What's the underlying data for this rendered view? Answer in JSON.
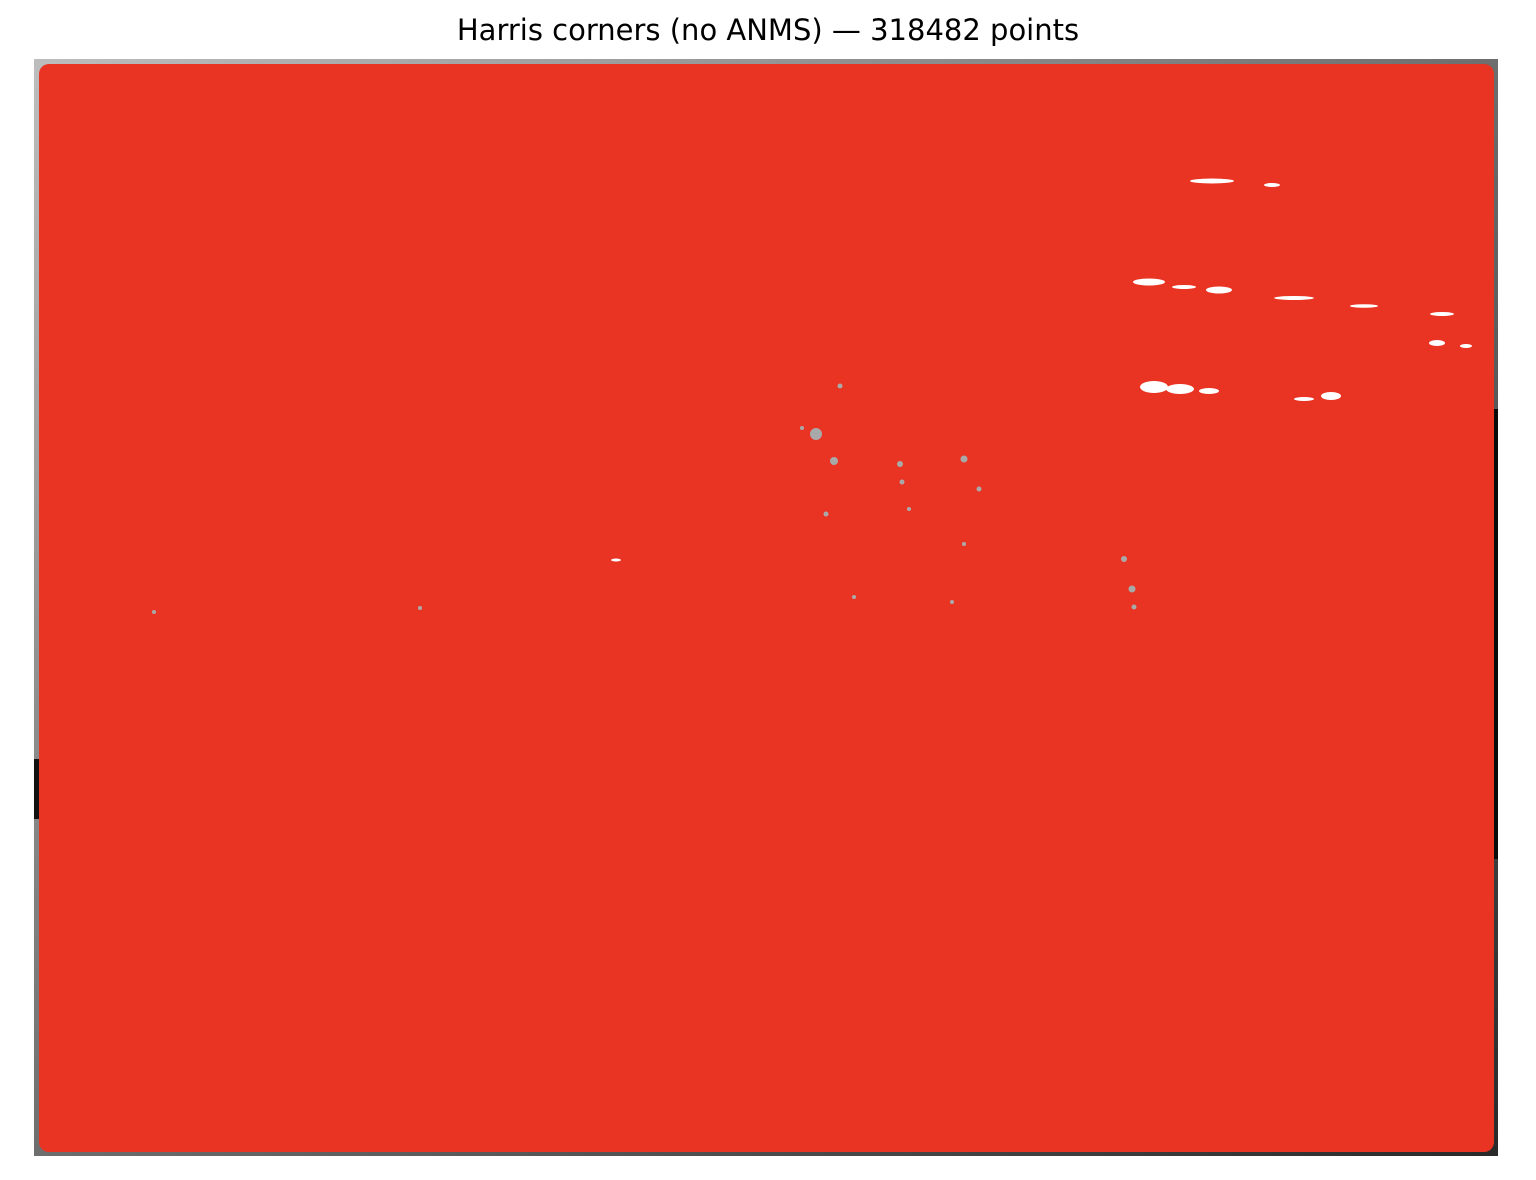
{
  "figure": {
    "title": "Harris corners (no ANMS) — 318482 points"
  },
  "colors": {
    "marker": "#e93323",
    "background": "#ffffff",
    "photo_gray": "#808080",
    "photo_dark": "#1a1a1a",
    "gap_white": "#ffffff",
    "gap_gray": "#a9a9a9"
  }
}
